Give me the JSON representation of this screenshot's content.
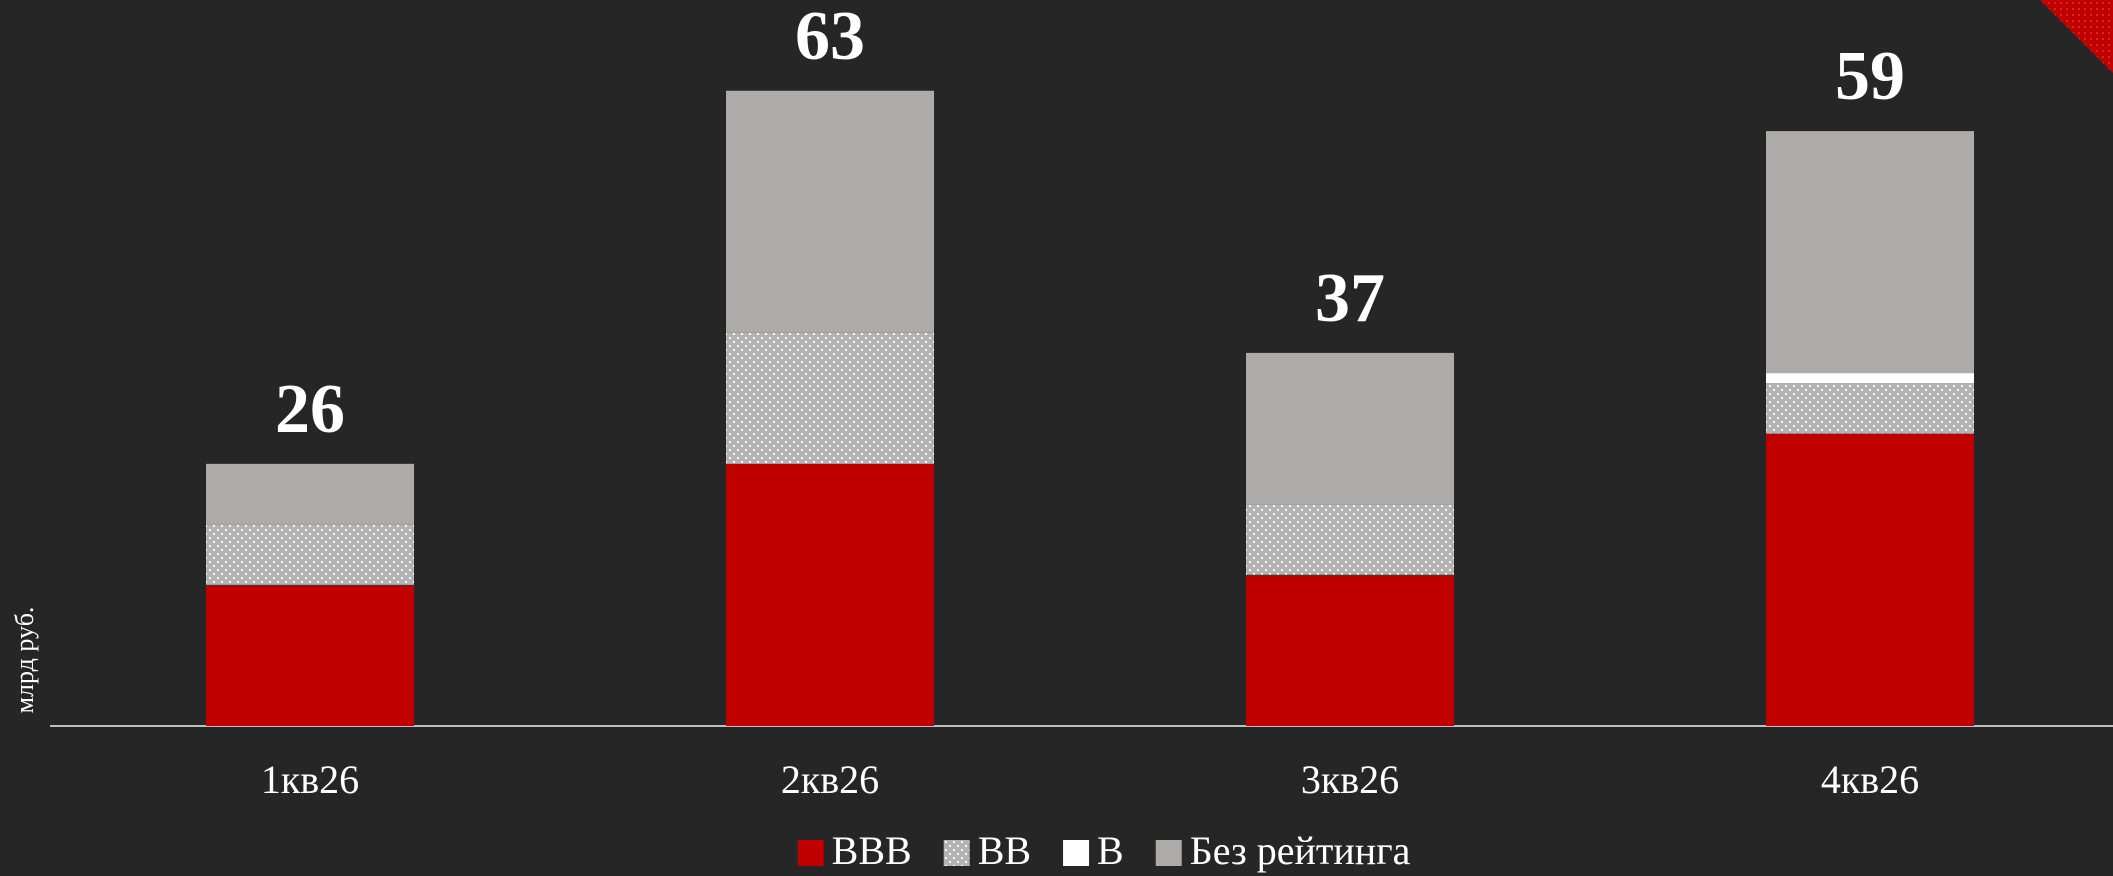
{
  "chart_data": {
    "type": "stacked_bar",
    "y_label": "млрд руб.",
    "categories": [
      "1кв26",
      "2кв26",
      "3кв26",
      "4кв26"
    ],
    "series": [
      {
        "name": "BBB",
        "color": "#c00000",
        "values": [
          14,
          26,
          15,
          29
        ]
      },
      {
        "name": "BB",
        "color": "#b3b3b3",
        "pattern": "dots",
        "values": [
          6,
          13,
          7,
          5
        ]
      },
      {
        "name": "B",
        "color": "#ffffff",
        "values": [
          0,
          0,
          0,
          1
        ]
      },
      {
        "name": "Без рейтинга",
        "color": "#aeaaaa",
        "values": [
          6,
          24,
          15,
          24
        ]
      }
    ],
    "totals": [
      26,
      63,
      37,
      59
    ],
    "ylim": [
      0,
      72
    ],
    "legend": "bottom"
  }
}
